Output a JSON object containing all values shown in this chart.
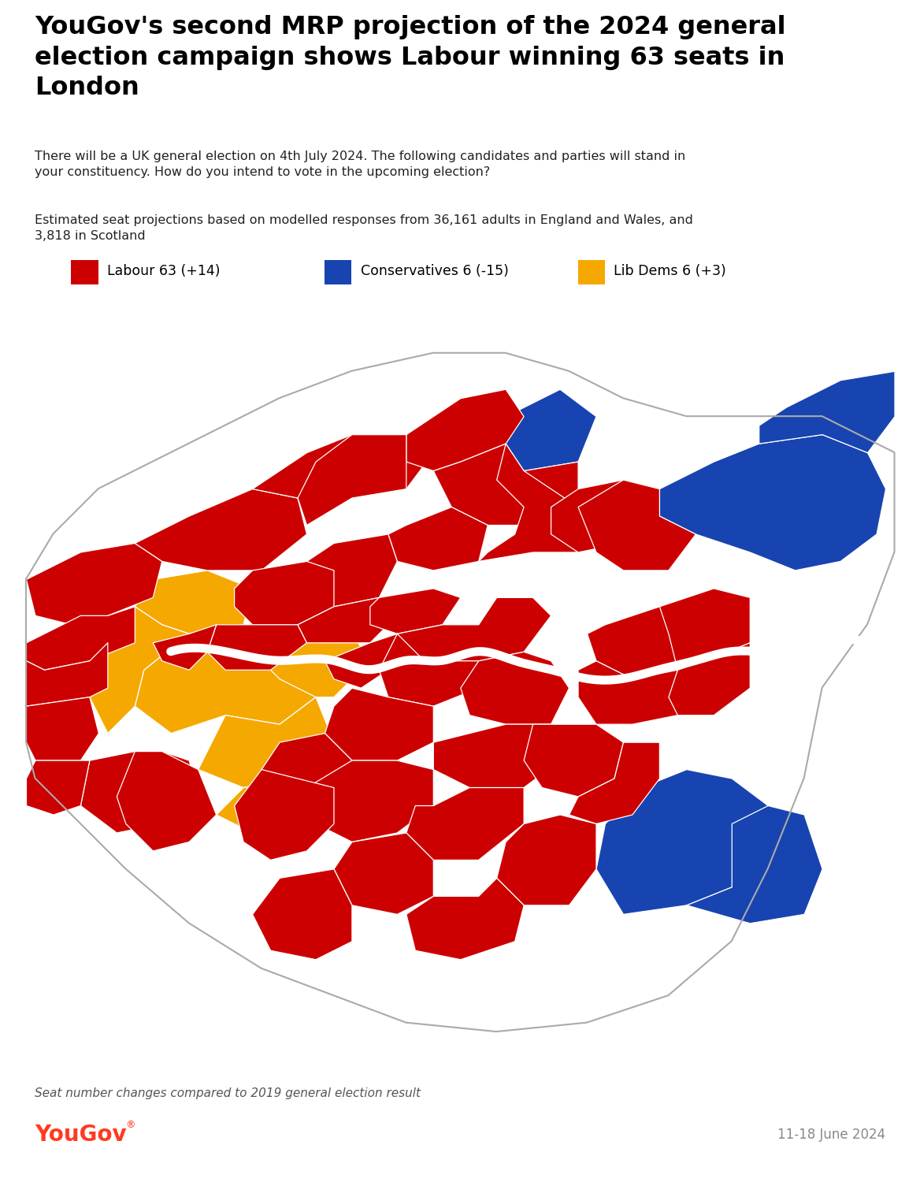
{
  "title_line1": "YouGov's second MRP projection of the 2024 general",
  "title_line2": "election campaign shows Labour winning 63 seats in",
  "title_line3": "London",
  "subtitle1": "There will be a UK general election on 4th July 2024. The following candidates and parties will stand in\nyour constituency. How do you intend to vote in the upcoming election?",
  "subtitle2": "Estimated seat projections based on modelled responses from 36,161 adults in England and Wales, and\n3,818 in Scotland",
  "legend_items": [
    {
      "label": "Labour 63 (+14)",
      "color": "#CC0000"
    },
    {
      "label": "Conservatives 6 (-15)",
      "color": "#1744B0"
    },
    {
      "label": "Lib Dems 6 (+3)",
      "color": "#F5A800"
    }
  ],
  "footnote": "Seat number changes compared to 2019 general election result",
  "date": "11-18 June 2024",
  "yougov_color": "#FF3A21",
  "background_color": "#FFFFFF",
  "map_background": "#CCCCCC",
  "labour_color": "#CC0000",
  "conservative_color": "#1744B0",
  "libdem_color": "#F5A800",
  "border_color": "#FFFFFF",
  "outer_border_color": "#AAAAAA"
}
